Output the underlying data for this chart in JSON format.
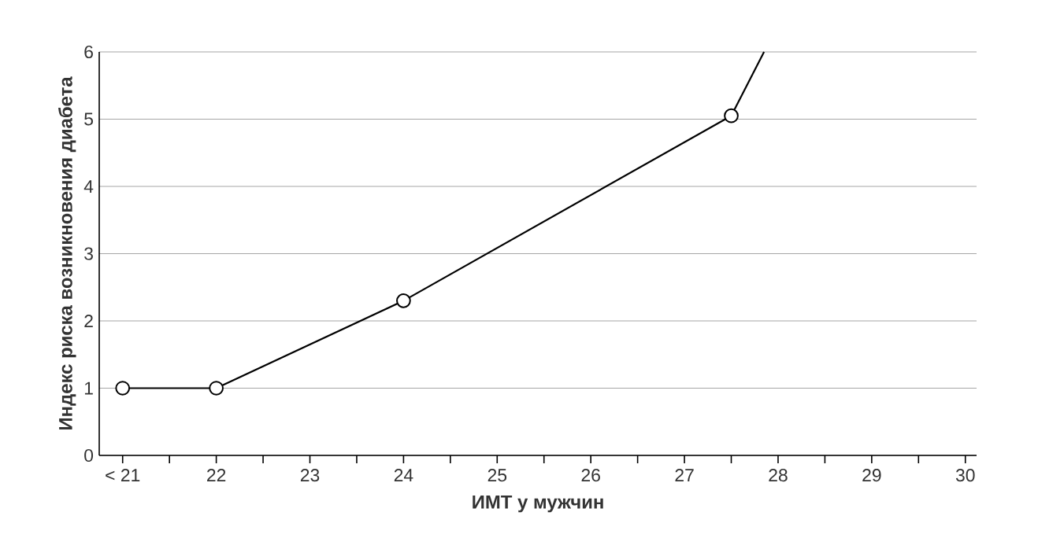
{
  "chart_data": {
    "type": "line",
    "xlabel": "ИМТ у мужчин",
    "ylabel": "Индекс риска возникновения диабета",
    "xlim": [
      20.75,
      30.12
    ],
    "ylim": [
      0,
      6
    ],
    "xticks": [
      {
        "value": 21,
        "label": "< 21"
      },
      {
        "value": 21.5,
        "label": null
      },
      22,
      {
        "value": 22.5,
        "label": null
      },
      23,
      {
        "value": 23.5,
        "label": null
      },
      24,
      {
        "value": 24.5,
        "label": null
      },
      25,
      {
        "value": 25.5,
        "label": null
      },
      26,
      {
        "value": 26.5,
        "label": null
      },
      27,
      {
        "value": 27.5,
        "label": null
      },
      28,
      {
        "value": 28.5,
        "label": null
      },
      29,
      {
        "value": 29.5,
        "label": null
      },
      30
    ],
    "yticks": [
      0,
      1,
      2,
      3,
      4,
      5,
      6
    ],
    "grid": "y",
    "series": [
      {
        "color": "#000000",
        "x": [
          21,
          22,
          24,
          27.5
        ],
        "values": [
          1,
          1,
          2.3,
          5.05
        ],
        "marker": "circle"
      },
      {
        "color": "#000000",
        "x": [
          27.5,
          27.85
        ],
        "values": [
          5.05,
          6
        ],
        "marker": "none"
      }
    ]
  }
}
